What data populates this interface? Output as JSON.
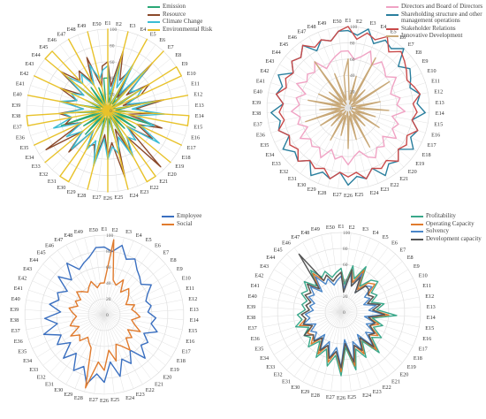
{
  "chart_data": [
    {
      "type": "radar",
      "categories": [
        "E1",
        "E2",
        "E3",
        "E4",
        "E5",
        "E6",
        "E7",
        "E8",
        "E9",
        "E10",
        "E11",
        "E12",
        "E13",
        "E14",
        "E15",
        "E16",
        "E17",
        "E18",
        "E19",
        "E20",
        "E21",
        "E22",
        "E23",
        "E24",
        "E25",
        "E26",
        "E27",
        "E28",
        "E29",
        "E30",
        "E31",
        "E32",
        "E33",
        "E34",
        "E35",
        "E36",
        "E37",
        "E38",
        "E39",
        "E40",
        "E41",
        "E42",
        "E43",
        "E44",
        "E45",
        "E46",
        "E47",
        "E48",
        "E49",
        "E50"
      ],
      "rmin": 0,
      "rmax": 100,
      "ticks": [
        0,
        20,
        40,
        60,
        80,
        100
      ],
      "grid": true,
      "legend_position": "top-right",
      "series": [
        {
          "name": "Emission",
          "color": "#2aa876",
          "values": [
            40,
            10,
            30,
            5,
            45,
            10,
            35,
            5,
            50,
            10,
            5,
            40,
            10,
            30,
            5,
            55,
            10,
            40,
            5,
            30,
            10,
            60,
            5,
            35,
            10,
            45,
            5,
            70,
            10,
            30,
            5,
            40,
            10,
            35,
            5,
            60,
            10,
            45,
            5,
            40,
            10,
            30,
            5,
            50,
            10,
            35,
            5,
            30,
            10,
            40
          ]
        },
        {
          "name": "Resource",
          "color": "#8b4a2b",
          "values": [
            60,
            30,
            75,
            40,
            55,
            20,
            80,
            30,
            60,
            45,
            20,
            70,
            35,
            55,
            25,
            70,
            40,
            65,
            30,
            95,
            40,
            60,
            25,
            85,
            40,
            55,
            30,
            65,
            45,
            50,
            30,
            70,
            40,
            90,
            35,
            55,
            45,
            60,
            30,
            55,
            40,
            65,
            35,
            75,
            50,
            60,
            40,
            70,
            30,
            55
          ]
        },
        {
          "name": "Climate Change",
          "color": "#3bbcd4",
          "values": [
            55,
            20,
            60,
            30,
            65,
            25,
            70,
            35,
            50,
            40,
            25,
            60,
            30,
            70,
            35,
            60,
            45,
            75,
            30,
            50,
            40,
            65,
            35,
            55,
            45,
            60,
            35,
            70,
            40,
            55,
            30,
            65,
            40,
            60,
            35,
            70,
            45,
            55,
            30,
            60,
            40,
            50,
            35,
            65,
            45,
            55,
            35,
            60,
            40,
            50
          ]
        },
        {
          "name": "Environmental Risk",
          "color": "#e8c22a",
          "values": [
            100,
            0,
            100,
            0,
            100,
            0,
            100,
            0,
            100,
            100,
            0,
            100,
            0,
            100,
            100,
            0,
            100,
            0,
            100,
            0,
            100,
            100,
            0,
            100,
            0,
            100,
            0,
            100,
            0,
            100,
            100,
            0,
            100,
            0,
            100,
            0,
            100,
            100,
            0,
            100,
            0,
            100,
            0,
            100,
            100,
            0,
            100,
            0,
            100,
            0
          ]
        }
      ]
    },
    {
      "type": "radar",
      "categories": [
        "E1",
        "E2",
        "E3",
        "E4",
        "E5",
        "E6",
        "E7",
        "E8",
        "E9",
        "E10",
        "E11",
        "E12",
        "E13",
        "E14",
        "E15",
        "E16",
        "E17",
        "E18",
        "E19",
        "E20",
        "E21",
        "E22",
        "E23",
        "E24",
        "E25",
        "E26",
        "E27",
        "E28",
        "E29",
        "E30",
        "E31",
        "E32",
        "E33",
        "E34",
        "E35",
        "E36",
        "E37",
        "E38",
        "E39",
        "E40",
        "E41",
        "E42",
        "E43",
        "E44",
        "E45",
        "E46",
        "E47",
        "E48",
        "E49",
        "E50"
      ],
      "rmin": 0,
      "rmax": 100,
      "ticks": [
        0,
        20,
        40,
        60,
        80,
        100
      ],
      "grid": true,
      "legend_position": "top-right",
      "series": [
        {
          "name": "Directors and Board of Directors",
          "color": "#f0a3c4",
          "values": [
            70,
            60,
            65,
            75,
            60,
            70,
            65,
            60,
            70,
            60,
            55,
            65,
            60,
            70,
            55,
            65,
            60,
            70,
            55,
            65,
            60,
            70,
            65,
            55,
            60,
            70,
            60,
            65,
            55,
            70,
            60,
            65,
            60,
            70,
            55,
            65,
            60,
            70,
            60,
            65,
            55,
            70,
            60,
            65,
            60,
            70,
            55,
            60,
            65,
            70
          ]
        },
        {
          "name": "Shareholding structure and other management operations",
          "color": "#2a7f9e",
          "values": [
            95,
            90,
            100,
            85,
            95,
            90,
            100,
            80,
            90,
            85,
            80,
            90,
            85,
            95,
            80,
            90,
            85,
            95,
            80,
            90,
            85,
            95,
            80,
            90,
            85,
            95,
            80,
            90,
            85,
            95,
            80,
            90,
            85,
            95,
            80,
            90,
            85,
            95,
            80,
            90,
            85,
            95,
            80,
            90,
            85,
            95,
            80,
            90,
            85,
            95
          ]
        },
        {
          "name": "Stakeholder Relations",
          "color": "#c94a4a",
          "values": [
            100,
            85,
            95,
            90,
            100,
            85,
            95,
            90,
            85,
            80,
            85,
            90,
            80,
            85,
            80,
            90,
            80,
            85,
            80,
            90,
            80,
            85,
            80,
            90,
            80,
            85,
            80,
            90,
            80,
            85,
            80,
            90,
            80,
            85,
            80,
            90,
            80,
            85,
            80,
            90,
            80,
            85,
            80,
            90,
            85,
            95,
            85,
            90,
            85,
            95
          ]
        },
        {
          "name": "Innovative Development",
          "color": "#c8a878",
          "values": [
            60,
            10,
            40,
            5,
            70,
            10,
            30,
            5,
            60,
            10,
            5,
            40,
            10,
            50,
            5,
            35,
            10,
            45,
            5,
            30,
            10,
            55,
            5,
            40,
            10,
            50,
            5,
            35,
            10,
            45,
            5,
            30,
            10,
            40,
            5,
            55,
            10,
            35,
            5,
            50,
            10,
            40,
            5,
            30,
            10,
            70,
            5,
            45,
            10,
            40
          ]
        }
      ]
    },
    {
      "type": "radar",
      "categories": [
        "E1",
        "E2",
        "E3",
        "E4",
        "E5",
        "E6",
        "E7",
        "E8",
        "E9",
        "E10",
        "E11",
        "E12",
        "E13",
        "E14",
        "E15",
        "E16",
        "E17",
        "E18",
        "E19",
        "E20",
        "E21",
        "E22",
        "E23",
        "E24",
        "E25",
        "E26",
        "E27",
        "E28",
        "E29",
        "E30",
        "E31",
        "E32",
        "E33",
        "E34",
        "E35",
        "E36",
        "E37",
        "E38",
        "E39",
        "E40",
        "E41",
        "E42",
        "E43",
        "E44",
        "E45",
        "E46",
        "E47",
        "E48",
        "E49",
        "E50"
      ],
      "rmin": 0,
      "rmax": 100,
      "ticks": [
        0,
        20,
        40,
        60,
        80,
        100
      ],
      "grid": true,
      "legend_position": "top-right",
      "series": [
        {
          "name": "Employee",
          "color": "#3a6fc0",
          "values": [
            85,
            80,
            90,
            75,
            80,
            70,
            65,
            60,
            70,
            60,
            55,
            60,
            55,
            65,
            60,
            70,
            55,
            65,
            60,
            75,
            55,
            70,
            60,
            80,
            60,
            85,
            75,
            90,
            70,
            80,
            60,
            75,
            55,
            70,
            60,
            80,
            60,
            75,
            55,
            70,
            60,
            65,
            55,
            75,
            60,
            80,
            65,
            70,
            75,
            85
          ]
        },
        {
          "name": "Social",
          "color": "#e07b2e",
          "values": [
            40,
            95,
            45,
            40,
            50,
            35,
            45,
            40,
            35,
            30,
            40,
            35,
            40,
            45,
            35,
            40,
            50,
            35,
            45,
            40,
            55,
            45,
            40,
            60,
            45,
            70,
            60,
            95,
            45,
            40,
            35,
            45,
            40,
            50,
            35,
            45,
            40,
            35,
            40,
            45,
            35,
            40,
            35,
            45,
            40,
            35,
            40,
            45,
            35,
            40
          ]
        }
      ]
    },
    {
      "type": "radar",
      "categories": [
        "E1",
        "E2",
        "E3",
        "E4",
        "E5",
        "E6",
        "E7",
        "E8",
        "E9",
        "E10",
        "E11",
        "E12",
        "E13",
        "E14",
        "E15",
        "E16",
        "E17",
        "E18",
        "E19",
        "E20",
        "E21",
        "E22",
        "E23",
        "E24",
        "E25",
        "E26",
        "E27",
        "E28",
        "E29",
        "E30",
        "E31",
        "E32",
        "E33",
        "E34",
        "E35",
        "E36",
        "E37",
        "E38",
        "E39",
        "E40",
        "E41",
        "E42",
        "E43",
        "E44",
        "E45",
        "E46",
        "E47",
        "E48",
        "E49",
        "E50"
      ],
      "rmin": 0,
      "rmax": 100,
      "ticks": [
        0,
        20,
        40,
        60,
        80,
        100
      ],
      "grid": true,
      "legend_position": "top-right",
      "series": [
        {
          "name": "Profitability",
          "color": "#3aa88a",
          "values": [
            55,
            35,
            60,
            45,
            65,
            40,
            55,
            60,
            45,
            50,
            40,
            55,
            45,
            70,
            40,
            55,
            45,
            60,
            50,
            70,
            45,
            65,
            50,
            75,
            45,
            80,
            55,
            70,
            50,
            65,
            45,
            60,
            50,
            55,
            45,
            60,
            50,
            55,
            45,
            50,
            45,
            55,
            50,
            60,
            45,
            65,
            50,
            55,
            45,
            50
          ]
        },
        {
          "name": "Operating Capacity",
          "color": "#e07b2e",
          "values": [
            50,
            30,
            55,
            40,
            60,
            35,
            50,
            55,
            40,
            45,
            35,
            50,
            40,
            60,
            35,
            50,
            40,
            55,
            45,
            65,
            40,
            60,
            45,
            70,
            40,
            75,
            50,
            65,
            45,
            60,
            40,
            55,
            45,
            50,
            40,
            55,
            45,
            50,
            40,
            45,
            40,
            50,
            45,
            55,
            40,
            60,
            45,
            50,
            40,
            45
          ]
        },
        {
          "name": "Solvency",
          "color": "#4a86c8",
          "values": [
            45,
            30,
            50,
            35,
            55,
            30,
            45,
            50,
            35,
            40,
            30,
            45,
            35,
            55,
            30,
            45,
            35,
            50,
            40,
            60,
            35,
            55,
            40,
            65,
            35,
            70,
            45,
            60,
            40,
            55,
            35,
            50,
            40,
            45,
            35,
            50,
            40,
            45,
            35,
            40,
            35,
            45,
            40,
            50,
            35,
            55,
            40,
            45,
            35,
            40
          ]
        },
        {
          "name": "Development capacity",
          "color": "#555555",
          "values": [
            50,
            25,
            55,
            35,
            50,
            30,
            45,
            45,
            40,
            45,
            35,
            50,
            40,
            55,
            35,
            45,
            40,
            50,
            45,
            60,
            40,
            55,
            45,
            65,
            40,
            70,
            50,
            60,
            45,
            55,
            40,
            50,
            45,
            55,
            40,
            50,
            45,
            50,
            40,
            45,
            40,
            50,
            45,
            55,
            40,
            90,
            45,
            50,
            40,
            45
          ]
        }
      ]
    }
  ]
}
